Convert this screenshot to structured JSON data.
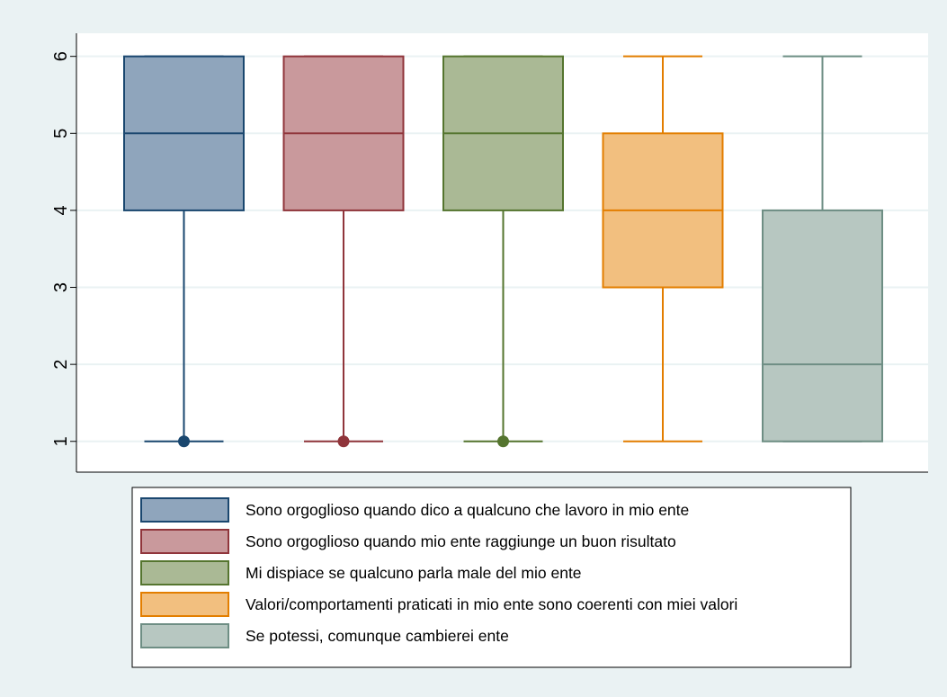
{
  "chart_data": {
    "type": "box",
    "title": "",
    "xlabel": "",
    "ylabel": "",
    "ylim": [
      0.6,
      6.3
    ],
    "yticks": [
      1,
      2,
      3,
      4,
      5,
      6
    ],
    "grid": true,
    "legend_position": "bottom",
    "series": [
      {
        "name": "Sono orgoglioso quando dico a qualcuno che lavoro in mio ente",
        "whisker_low": 1,
        "q1": 4,
        "median": 5,
        "q3": 6,
        "whisker_high": 6,
        "outliers": [
          1
        ],
        "fill": "#8fa5bc",
        "stroke": "#1a476f"
      },
      {
        "name": "Sono orgoglioso quando mio ente raggiunge un buon risultato",
        "whisker_low": 1,
        "q1": 4,
        "median": 5,
        "q3": 6,
        "whisker_high": 6,
        "outliers": [
          1
        ],
        "fill": "#c9999c",
        "stroke": "#90353b"
      },
      {
        "name": "Mi dispiace se qualcuno parla male del mio ente",
        "whisker_low": 1,
        "q1": 4,
        "median": 5,
        "q3": 6,
        "whisker_high": 6,
        "outliers": [
          1
        ],
        "fill": "#aab995",
        "stroke": "#55752f"
      },
      {
        "name": "Valori/comportamenti praticati in mio ente sono coerenti con miei valori",
        "whisker_low": 1,
        "q1": 3,
        "median": 4,
        "q3": 5,
        "whisker_high": 6,
        "outliers": [],
        "fill": "#f2bf7f",
        "stroke": "#e37e00"
      },
      {
        "name": "Se potessi, comunque cambierei ente",
        "whisker_low": 1,
        "q1": 1,
        "median": 2,
        "q3": 4,
        "whisker_high": 6,
        "outliers": [],
        "fill": "#b7c7c1",
        "stroke": "#6e8e84"
      }
    ]
  }
}
